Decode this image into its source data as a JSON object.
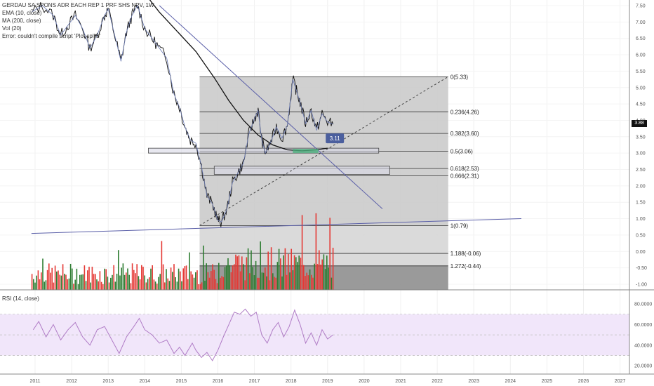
{
  "legend": {
    "title": "GERDAU SA SPONS ADR EACH REP 1 PRF SHS NPV, 1W",
    "indicators": [
      "EMA (10, close)",
      "MA (200, close)",
      "Vol (20)",
      "Error: couldn't compile script 'Plot splits'"
    ]
  },
  "rsi_label": "RSI (14, close)",
  "last_price": "3.88",
  "colors": {
    "fib_fill": "#c8c8c8",
    "fib_fill_low": "#8f8f8f",
    "rsi_band": "#f1e6fa",
    "rsi_line": "#b07cc6",
    "trend_line": "#5a5fa8",
    "ma_line": "#111111",
    "vol_up": "#2e7d32",
    "vol_down": "#e53935"
  },
  "callout": "3.11",
  "chart_data": {
    "type": "line",
    "x_axis": {
      "labels": [
        "2011",
        "2012",
        "2013",
        "2014",
        "2015",
        "2016",
        "2017",
        "2018",
        "2019",
        "2020",
        "2021",
        "2022",
        "2023",
        "2024",
        "2025",
        "2026",
        "2027"
      ]
    },
    "price_axis": {
      "labels": [
        "7.50",
        "7.00",
        "6.50",
        "6.00",
        "5.50",
        "5.00",
        "4.50",
        "4.00",
        "3.50",
        "3.00",
        "2.50",
        "2.00",
        "1.50",
        "1.00",
        "0.50",
        "0.00",
        "-0.50",
        "-1.00"
      ],
      "ylim": [
        -1.0,
        7.5
      ]
    },
    "rsi_axis": {
      "labels": [
        "80.0000",
        "60.0000",
        "40.0000",
        "20.0000"
      ],
      "ylim": [
        20,
        80
      ]
    },
    "fib_levels": [
      {
        "label": "0(5.33)",
        "value": 5.33
      },
      {
        "label": "0.236(4.26)",
        "value": 4.26
      },
      {
        "label": "0.382(3.60)",
        "value": 3.6
      },
      {
        "label": "0.5(3.06)",
        "value": 3.06
      },
      {
        "label": "0.618(2.53)",
        "value": 2.53
      },
      {
        "label": "0.666(2.31)",
        "value": 2.31
      },
      {
        "label": "1(0.79)",
        "value": 0.79
      },
      {
        "label": "1.188(-0.06)",
        "value": -0.06
      },
      {
        "label": "1.272(-0.44)",
        "value": -0.44
      }
    ],
    "price_series": [
      [
        2010.9,
        7.3
      ],
      [
        2011.2,
        7.5
      ],
      [
        2011.5,
        7.2
      ],
      [
        2011.7,
        6.6
      ],
      [
        2011.9,
        6.9
      ],
      [
        2012.1,
        7.2
      ],
      [
        2012.3,
        6.8
      ],
      [
        2012.5,
        6.2
      ],
      [
        2012.7,
        6.6
      ],
      [
        2012.9,
        7.2
      ],
      [
        2013.0,
        7.4
      ],
      [
        2013.2,
        6.5
      ],
      [
        2013.35,
        5.8
      ],
      [
        2013.5,
        6.7
      ],
      [
        2013.65,
        7.2
      ],
      [
        2013.8,
        7.5
      ],
      [
        2014.0,
        6.8
      ],
      [
        2014.2,
        6.5
      ],
      [
        2014.4,
        6.2
      ],
      [
        2014.6,
        5.9
      ],
      [
        2014.8,
        4.8
      ],
      [
        2014.95,
        4.4
      ],
      [
        2015.1,
        3.8
      ],
      [
        2015.25,
        3.4
      ],
      [
        2015.4,
        3.3
      ],
      [
        2015.55,
        2.6
      ],
      [
        2015.7,
        1.7
      ],
      [
        2015.85,
        1.45
      ],
      [
        2016.0,
        0.95
      ],
      [
        2016.1,
        0.9
      ],
      [
        2016.25,
        1.3
      ],
      [
        2016.4,
        2.1
      ],
      [
        2016.55,
        2.4
      ],
      [
        2016.7,
        2.7
      ],
      [
        2016.85,
        3.6
      ],
      [
        2017.0,
        4.05
      ],
      [
        2017.1,
        4.3
      ],
      [
        2017.2,
        3.4
      ],
      [
        2017.3,
        3.0
      ],
      [
        2017.45,
        3.35
      ],
      [
        2017.6,
        3.8
      ],
      [
        2017.75,
        3.45
      ],
      [
        2017.9,
        3.85
      ],
      [
        2018.05,
        5.25
      ],
      [
        2018.15,
        4.9
      ],
      [
        2018.25,
        4.55
      ],
      [
        2018.4,
        3.9
      ],
      [
        2018.55,
        4.3
      ],
      [
        2018.7,
        3.7
      ],
      [
        2018.85,
        4.2
      ],
      [
        2019.0,
        3.95
      ],
      [
        2019.15,
        3.88
      ]
    ],
    "ma200_series": [
      [
        2014.05,
        7.8
      ],
      [
        2014.4,
        7.3
      ],
      [
        2014.9,
        6.7
      ],
      [
        2015.4,
        6.1
      ],
      [
        2015.9,
        5.3
      ],
      [
        2016.3,
        4.6
      ],
      [
        2016.7,
        4.0
      ],
      [
        2017.1,
        3.55
      ],
      [
        2017.5,
        3.25
      ],
      [
        2017.9,
        3.1
      ],
      [
        2018.3,
        3.07
      ],
      [
        2018.7,
        3.1
      ],
      [
        2019.0,
        3.15
      ]
    ],
    "trend_lines": [
      {
        "from": [
          2014.4,
          7.5
        ],
        "to": [
          2020.5,
          1.3
        ]
      },
      {
        "from": [
          2010.9,
          0.55
        ],
        "to": [
          2024.3,
          1.0
        ]
      },
      {
        "from": [
          2015.5,
          0.79
        ],
        "to": [
          2022.3,
          5.33
        ],
        "dashed": true
      }
    ],
    "zones": [
      {
        "x": [
          2014.1,
          2020.4
        ],
        "y": [
          3.0,
          3.15
        ]
      },
      {
        "x": [
          2015.9,
          2020.7
        ],
        "y": [
          2.35,
          2.6
        ]
      }
    ],
    "fib_range_x": [
      2015.5,
      2022.3
    ],
    "volume_range_x": [
      2010.9,
      2019.15
    ],
    "rsi_series": [
      [
        2010.95,
        55
      ],
      [
        2011.1,
        63
      ],
      [
        2011.3,
        48
      ],
      [
        2011.5,
        60
      ],
      [
        2011.7,
        45
      ],
      [
        2011.9,
        55
      ],
      [
        2012.1,
        62
      ],
      [
        2012.3,
        48
      ],
      [
        2012.5,
        40
      ],
      [
        2012.7,
        55
      ],
      [
        2012.9,
        58
      ],
      [
        2013.1,
        45
      ],
      [
        2013.3,
        32
      ],
      [
        2013.5,
        48
      ],
      [
        2013.7,
        58
      ],
      [
        2013.85,
        66
      ],
      [
        2014.0,
        55
      ],
      [
        2014.2,
        50
      ],
      [
        2014.4,
        42
      ],
      [
        2014.6,
        45
      ],
      [
        2014.8,
        32
      ],
      [
        2014.95,
        38
      ],
      [
        2015.1,
        30
      ],
      [
        2015.3,
        42
      ],
      [
        2015.4,
        35
      ],
      [
        2015.55,
        28
      ],
      [
        2015.7,
        33
      ],
      [
        2015.85,
        25
      ],
      [
        2016.0,
        35
      ],
      [
        2016.15,
        48
      ],
      [
        2016.3,
        60
      ],
      [
        2016.45,
        72
      ],
      [
        2016.6,
        70
      ],
      [
        2016.75,
        75
      ],
      [
        2016.9,
        68
      ],
      [
        2017.05,
        72
      ],
      [
        2017.2,
        50
      ],
      [
        2017.35,
        42
      ],
      [
        2017.5,
        55
      ],
      [
        2017.65,
        62
      ],
      [
        2017.8,
        48
      ],
      [
        2017.95,
        58
      ],
      [
        2018.1,
        74
      ],
      [
        2018.25,
        60
      ],
      [
        2018.4,
        42
      ],
      [
        2018.55,
        52
      ],
      [
        2018.7,
        40
      ],
      [
        2018.85,
        55
      ],
      [
        2019.0,
        46
      ],
      [
        2019.15,
        50
      ]
    ]
  }
}
